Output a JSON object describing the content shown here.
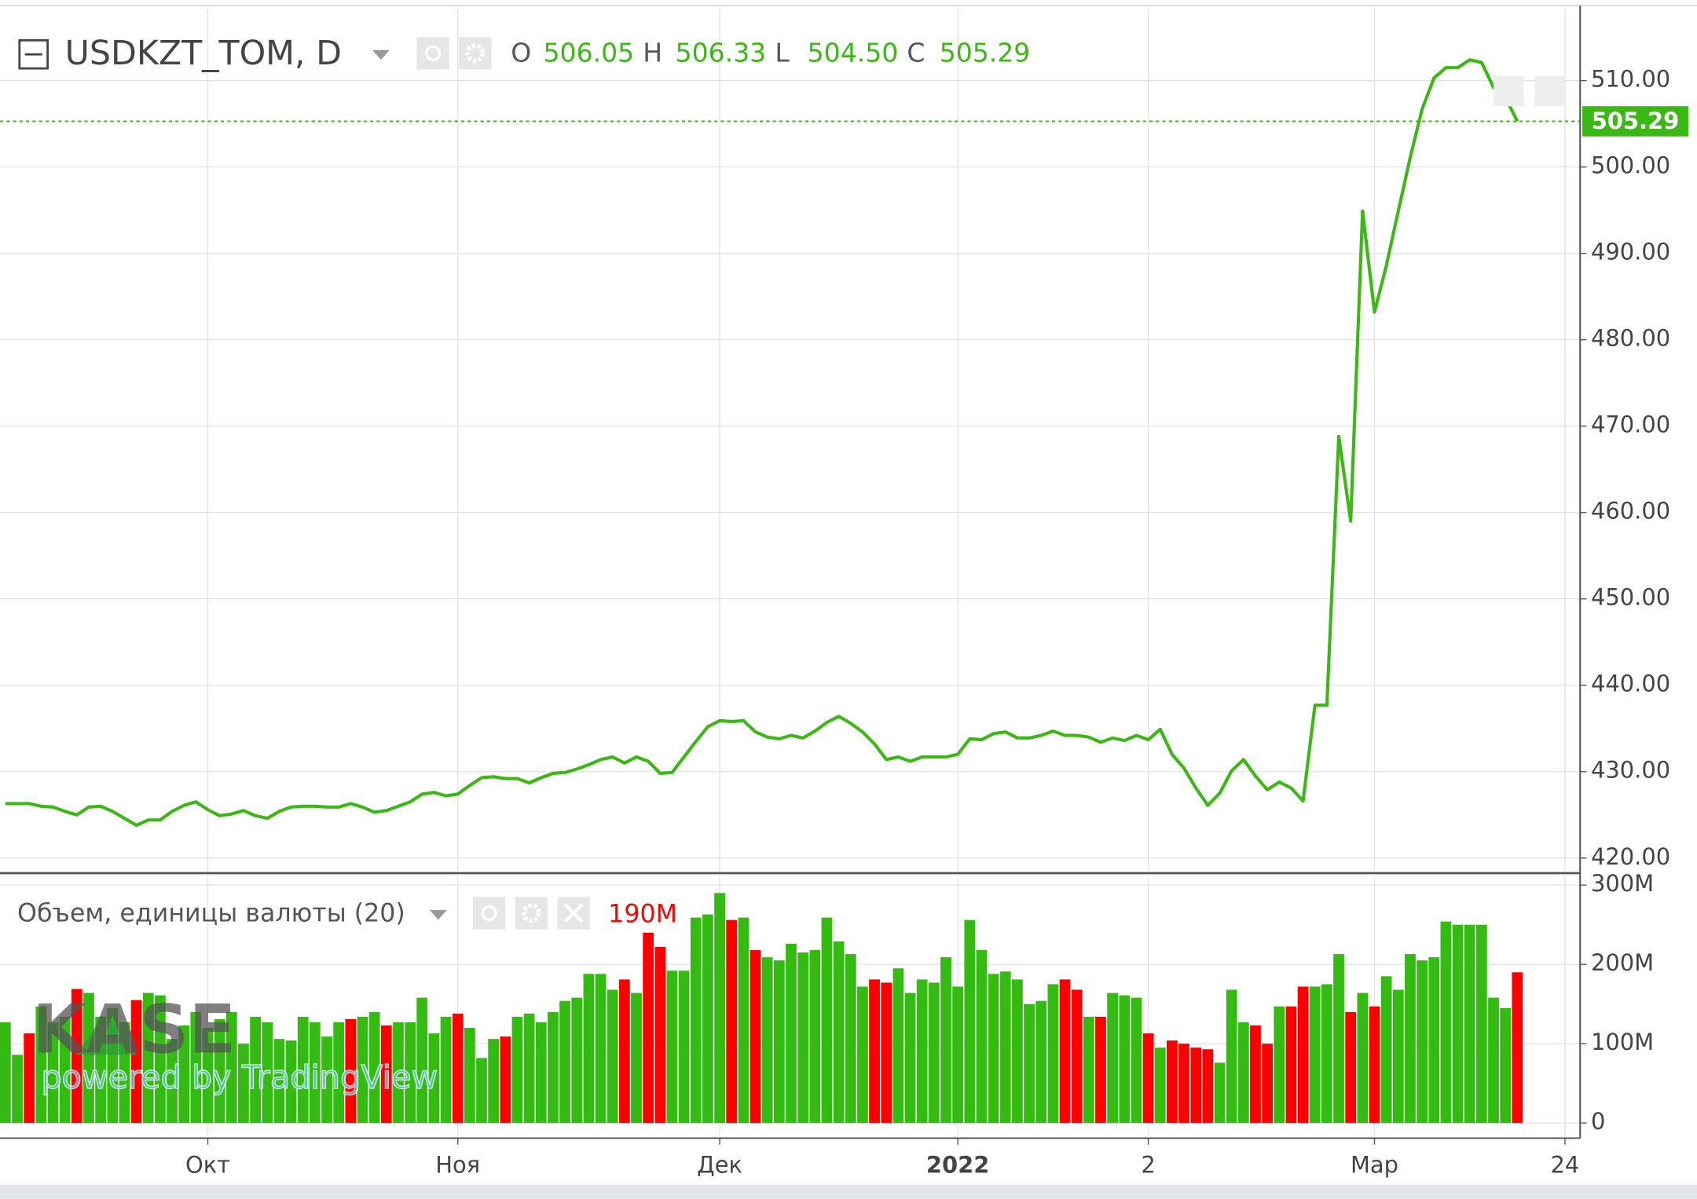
{
  "chart_data": [
    {
      "type": "line",
      "title": "USDKZT_TOM, D",
      "color": "#3cb814",
      "ohlc": {
        "names": [
          "O",
          "H",
          "L",
          "C"
        ],
        "values": [
          506.05,
          506.33,
          504.5,
          505.29
        ],
        "value_labels": [
          "506.05",
          "506.33",
          "504.50",
          "505.29"
        ]
      },
      "categories": [
        null,
        null,
        null,
        null,
        null,
        null,
        null,
        null,
        null,
        null,
        null,
        null,
        null,
        null,
        null,
        null,
        null,
        "Окт",
        null,
        null,
        null,
        null,
        null,
        null,
        null,
        null,
        null,
        null,
        null,
        null,
        null,
        null,
        null,
        null,
        null,
        null,
        null,
        null,
        "Ноя",
        null,
        null,
        null,
        null,
        null,
        null,
        null,
        null,
        null,
        null,
        null,
        null,
        null,
        null,
        null,
        null,
        null,
        null,
        null,
        null,
        null,
        "Дек",
        null,
        null,
        null,
        null,
        null,
        null,
        null,
        null,
        null,
        null,
        null,
        null,
        null,
        null,
        null,
        null,
        null,
        null,
        null,
        "2022",
        null,
        null,
        null,
        null,
        null,
        null,
        null,
        null,
        null,
        null,
        null,
        null,
        null,
        null,
        null,
        "2",
        null,
        null,
        null,
        null,
        null,
        null,
        null,
        null,
        null,
        null,
        null,
        null,
        null,
        null,
        null,
        null,
        null,
        null,
        "Мар",
        null,
        null,
        null,
        null,
        null,
        null,
        null,
        null,
        null,
        null,
        null,
        null,
        null,
        null,
        null,
        "24",
        null
      ],
      "values": [
        426.3,
        426.3,
        426.3,
        426.0,
        425.9,
        425.4,
        425.0,
        425.9,
        426.0,
        425.4,
        424.6,
        423.8,
        424.4,
        424.4,
        425.4,
        426.1,
        426.5,
        425.6,
        424.9,
        425.1,
        425.5,
        424.9,
        424.6,
        425.4,
        425.9,
        426.0,
        426.0,
        425.9,
        425.9,
        426.3,
        425.9,
        425.3,
        425.5,
        426.0,
        426.5,
        427.4,
        427.6,
        427.2,
        427.4,
        428.4,
        429.3,
        429.4,
        429.2,
        429.2,
        428.7,
        429.3,
        429.8,
        429.9,
        430.3,
        430.8,
        431.4,
        431.7,
        431.0,
        431.7,
        431.2,
        429.8,
        429.9,
        431.7,
        433.5,
        435.2,
        435.9,
        435.8,
        435.9,
        434.6,
        434.0,
        433.8,
        434.2,
        433.9,
        434.7,
        435.7,
        436.4,
        435.6,
        434.6,
        433.2,
        431.4,
        431.7,
        431.2,
        431.7,
        431.7,
        431.7,
        432.0,
        433.8,
        433.7,
        434.4,
        434.6,
        433.9,
        433.9,
        434.2,
        434.7,
        434.2,
        434.2,
        434.0,
        433.4,
        433.9,
        433.6,
        434.2,
        433.7,
        434.9,
        432.0,
        430.4,
        428.1,
        426.1,
        427.5,
        430.1,
        431.4,
        429.5,
        427.9,
        428.8,
        428.1,
        426.6,
        437.7,
        437.7,
        468.8,
        459.0,
        494.9,
        483.2,
        488.6,
        494.9,
        501.1,
        506.7,
        510.3,
        511.5,
        511.5,
        512.4,
        512.1,
        509.2,
        508.0,
        505.29,
        null,
        null,
        null,
        null,
        null
      ],
      "ylim": [
        418.5,
        518.3
      ],
      "yticks": [
        {
          "value": 420,
          "label": "420.00"
        },
        {
          "value": 430,
          "label": "430.00"
        },
        {
          "value": 440,
          "label": "440.00"
        },
        {
          "value": 450,
          "label": "450.00"
        },
        {
          "value": 460,
          "label": "460.00"
        },
        {
          "value": 470,
          "label": "470.00"
        },
        {
          "value": 480,
          "label": "480.00"
        },
        {
          "value": 490,
          "label": "490.00"
        },
        {
          "value": 500,
          "label": "500.00"
        },
        {
          "value": 510,
          "label": "510.00"
        }
      ],
      "grid": true
    },
    {
      "type": "bar",
      "title": "Объем, единицы валюты (20)",
      "legend_value": {
        "value": 190,
        "label": "190M"
      },
      "values": [
        127,
        86,
        113,
        147,
        127,
        134,
        169,
        164,
        134,
        145,
        127,
        155,
        164,
        161,
        106,
        123,
        140,
        120,
        131,
        140,
        100,
        134,
        127,
        106,
        104,
        134,
        127,
        109,
        127,
        131,
        134,
        140,
        123,
        127,
        127,
        158,
        113,
        134,
        138,
        120,
        82,
        106,
        109,
        134,
        138,
        127,
        140,
        154,
        158,
        188,
        188,
        168,
        181,
        164,
        240,
        222,
        192,
        192,
        259,
        263,
        290,
        256,
        259,
        218,
        209,
        205,
        226,
        215,
        218,
        259,
        229,
        213,
        172,
        181,
        177,
        195,
        164,
        181,
        177,
        209,
        172,
        256,
        218,
        188,
        191,
        181,
        150,
        154,
        175,
        181,
        168,
        134,
        134,
        164,
        161,
        158,
        113,
        95,
        104,
        100,
        95,
        93,
        76,
        168,
        127,
        123,
        100,
        147,
        147,
        172,
        172,
        175,
        213,
        140,
        164,
        147,
        185,
        168,
        213,
        205,
        209,
        254,
        250,
        250,
        250,
        158,
        145,
        190,
        null,
        null,
        null,
        null,
        null
      ],
      "colors": [
        "#3b1",
        "#3b1",
        "#f00",
        "#3b1",
        "#3b1",
        "#3b1",
        "#f00",
        "#3b1",
        "#3b1",
        "#3b1",
        "#3b1",
        "#f00",
        "#3b1",
        "#3b1",
        "#3b1",
        "#3b1",
        "#3b1",
        "#3b1",
        "#3b1",
        "#3b1",
        "#3b1",
        "#3b1",
        "#3b1",
        "#3b1",
        "#3b1",
        "#3b1",
        "#3b1",
        "#3b1",
        "#3b1",
        "#f00",
        "#3b1",
        "#3b1",
        "#f00",
        "#3b1",
        "#3b1",
        "#3b1",
        "#3b1",
        "#3b1",
        "#f00",
        "#3b1",
        "#3b1",
        "#3b1",
        "#f00",
        "#3b1",
        "#3b1",
        "#3b1",
        "#3b1",
        "#3b1",
        "#3b1",
        "#3b1",
        "#3b1",
        "#3b1",
        "#f00",
        "#3b1",
        "#f00",
        "#f00",
        "#3b1",
        "#3b1",
        "#3b1",
        "#3b1",
        "#3b1",
        "#f00",
        "#3b1",
        "#f00",
        "#3b1",
        "#3b1",
        "#3b1",
        "#3b1",
        "#3b1",
        "#3b1",
        "#3b1",
        "#3b1",
        "#3b1",
        "#f00",
        "#f00",
        "#3b1",
        "#3b1",
        "#3b1",
        "#3b1",
        "#3b1",
        "#3b1",
        "#3b1",
        "#3b1",
        "#3b1",
        "#3b1",
        "#3b1",
        "#3b1",
        "#3b1",
        "#3b1",
        "#f00",
        "#f00",
        "#3b1",
        "#f00",
        "#3b1",
        "#3b1",
        "#3b1",
        "#f00",
        "#3b1",
        "#f00",
        "#f00",
        "#f00",
        "#f00",
        "#3b1",
        "#3b1",
        "#3b1",
        "#f00",
        "#f00",
        "#3b1",
        "#f00",
        "#f00",
        "#3b1",
        "#3b1",
        "#3b1",
        "#f00",
        "#3b1",
        "#f00",
        "#3b1",
        "#3b1",
        "#3b1",
        "#3b1",
        "#3b1",
        "#3b1",
        "#3b1",
        "#3b1",
        "#3b1",
        "#3b1",
        "#3b1",
        "#f00",
        null,
        null,
        null,
        null,
        null
      ],
      "ylim": [
        0,
        300
      ],
      "yticks": [
        0,
        {
          "value": 100,
          "label": "100M"
        },
        {
          "value": 200,
          "label": "200M"
        },
        {
          "value": 300,
          "label": "300M"
        }
      ],
      "grid": true
    }
  ],
  "watermark": {
    "logo": "KASE",
    "tagline": "powered by TradingView"
  }
}
